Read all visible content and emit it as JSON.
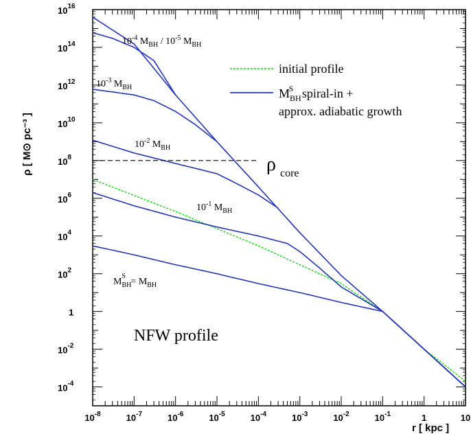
{
  "chart_data": {
    "type": "line",
    "xscale": "log",
    "yscale": "log",
    "xlim": [
      1e-08,
      10
    ],
    "ylim": [
      1e-05,
      1e+16
    ],
    "grid": false,
    "legend_position": "top-right",
    "xlabel": "r [ kpc ]",
    "ylabel": "ρ [ M⊙ pc⁻³ ]",
    "x_ticks": [
      {
        "value": 1e-08,
        "label": "10",
        "exp": "-8"
      },
      {
        "value": 1e-07,
        "label": "10",
        "exp": "-7"
      },
      {
        "value": 1e-06,
        "label": "10",
        "exp": "-6"
      },
      {
        "value": 1e-05,
        "label": "10",
        "exp": "-5"
      },
      {
        "value": 0.0001,
        "label": "10",
        "exp": "-4"
      },
      {
        "value": 0.001,
        "label": "10",
        "exp": "-3"
      },
      {
        "value": 0.01,
        "label": "10",
        "exp": "-2"
      },
      {
        "value": 0.1,
        "label": "10",
        "exp": "-1"
      },
      {
        "value": 1,
        "label": "1",
        "exp": ""
      },
      {
        "value": 10,
        "label": "10",
        "exp": ""
      }
    ],
    "y_ticks": [
      {
        "value": 1e+16,
        "label": "10",
        "exp": "16"
      },
      {
        "value": 100000000000000.0,
        "label": "10",
        "exp": "14"
      },
      {
        "value": 1000000000000.0,
        "label": "10",
        "exp": "12"
      },
      {
        "value": 10000000000.0,
        "label": "10",
        "exp": "10"
      },
      {
        "value": 100000000.0,
        "label": "10",
        "exp": "8"
      },
      {
        "value": 1000000.0,
        "label": "10",
        "exp": "6"
      },
      {
        "value": 10000.0,
        "label": "10",
        "exp": "4"
      },
      {
        "value": 100.0,
        "label": "10",
        "exp": "2"
      },
      {
        "value": 1,
        "label": "1",
        "exp": ""
      },
      {
        "value": 0.01,
        "label": "10",
        "exp": "-2"
      },
      {
        "value": 0.0001,
        "label": "10",
        "exp": "-4"
      }
    ],
    "legend": [
      {
        "label": "initial profile",
        "color": "#00dd00",
        "dash": true
      },
      {
        "label_main": "M",
        "label_sub": "BH",
        "label_sup": "S",
        "label_rest": " spiral-in +",
        "label_line2": "approx. adiabatic growth",
        "color": "#2233bb",
        "dash": false
      }
    ],
    "annotations": {
      "curve_1e4": {
        "prefix": "10",
        "exp": "-4",
        "m": " M",
        "sub": "BH",
        "mid": " / 10",
        "exp2": "-5",
        "m2": " M",
        "sub2": "BH"
      },
      "curve_1e3": {
        "prefix": "10",
        "exp": "-3",
        "m": " M",
        "sub": "BH"
      },
      "curve_1e2": {
        "prefix": "10",
        "exp": "-2",
        "m": " M",
        "sub": "BH"
      },
      "curve_1e1": {
        "prefix": "10",
        "exp": "-1",
        "m": " M",
        "sub": "BH"
      },
      "curve_full": {
        "m": "M",
        "sup": "S",
        "sub": "BH",
        "rest": " = M",
        "sub2": "BH"
      },
      "rho_core": {
        "rho": "ρ",
        "sub": "core",
        "value": 100000000.0
      },
      "nfw": "NFW profile"
    },
    "series": [
      {
        "role": "initial",
        "color": "#00dd00",
        "dashed": true,
        "x": [
          1e-08,
          1e-06,
          0.0001,
          0.01,
          0.1,
          1,
          10
        ],
        "y": [
          10000000.0,
          200000.0,
          3000.0,
          30,
          1,
          0.01,
          0.0002
        ]
      },
      {
        "role": "envelope",
        "color": "#2233bb",
        "dashed": false,
        "x": [
          1e-08,
          1e-07,
          1e-06,
          1e-05,
          0.0001,
          0.001,
          0.01,
          0.1,
          1,
          10
        ],
        "y": [
          4000000000000000.0,
          150000000000000.0,
          300000000000.0,
          1000000000.0,
          4000000.0,
          15000.0,
          80,
          1,
          0.01,
          0.0001
        ]
      },
      {
        "role": "curve_1e-5",
        "color": "#2233bb",
        "dashed": false,
        "x": [
          1e-08,
          3e-08,
          1e-07,
          3e-07,
          1e-06
        ],
        "y": [
          600000000000000.0,
          300000000000000.0,
          100000000000000.0,
          20000000000000.0,
          300000000000.0
        ]
      },
      {
        "role": "curve_1e-3",
        "color": "#2233bb",
        "dashed": false,
        "x": [
          1e-08,
          1e-07,
          3e-07,
          1e-06,
          3e-06,
          1e-05
        ],
        "y": [
          600000000000.0,
          300000000000.0,
          150000000000.0,
          40000000000.0,
          8000000000.0,
          1000000000.0
        ]
      },
      {
        "role": "curve_1e-2",
        "color": "#2233bb",
        "dashed": false,
        "x": [
          1e-08,
          1e-07,
          1e-06,
          1e-05,
          3e-05,
          0.0001,
          0.0003
        ],
        "y": [
          1200000000.0,
          250000000.0,
          70000000.0,
          20000000.0,
          6000000.0,
          1500000.0,
          300000.0
        ]
      },
      {
        "role": "curve_1e-1",
        "color": "#2233bb",
        "dashed": false,
        "x": [
          1e-08,
          1e-07,
          1e-06,
          1e-05,
          0.0001,
          0.0005,
          0.001,
          0.003,
          0.01,
          0.1,
          1,
          10
        ],
        "y": [
          2000000.0,
          400000.0,
          100000.0,
          30000.0,
          10000.0,
          4000.0,
          1500.0,
          200,
          20,
          1,
          0.01,
          0.0001
        ]
      },
      {
        "role": "curve_full",
        "color": "#2233bb",
        "dashed": false,
        "x": [
          1e-08,
          1e-07,
          1e-06,
          1e-05,
          0.0001,
          0.001,
          0.01,
          0.1,
          1,
          10
        ],
        "y": [
          3000.0,
          1000.0,
          300,
          100,
          30,
          10,
          3,
          1,
          0.01,
          0.0001
        ]
      }
    ]
  }
}
